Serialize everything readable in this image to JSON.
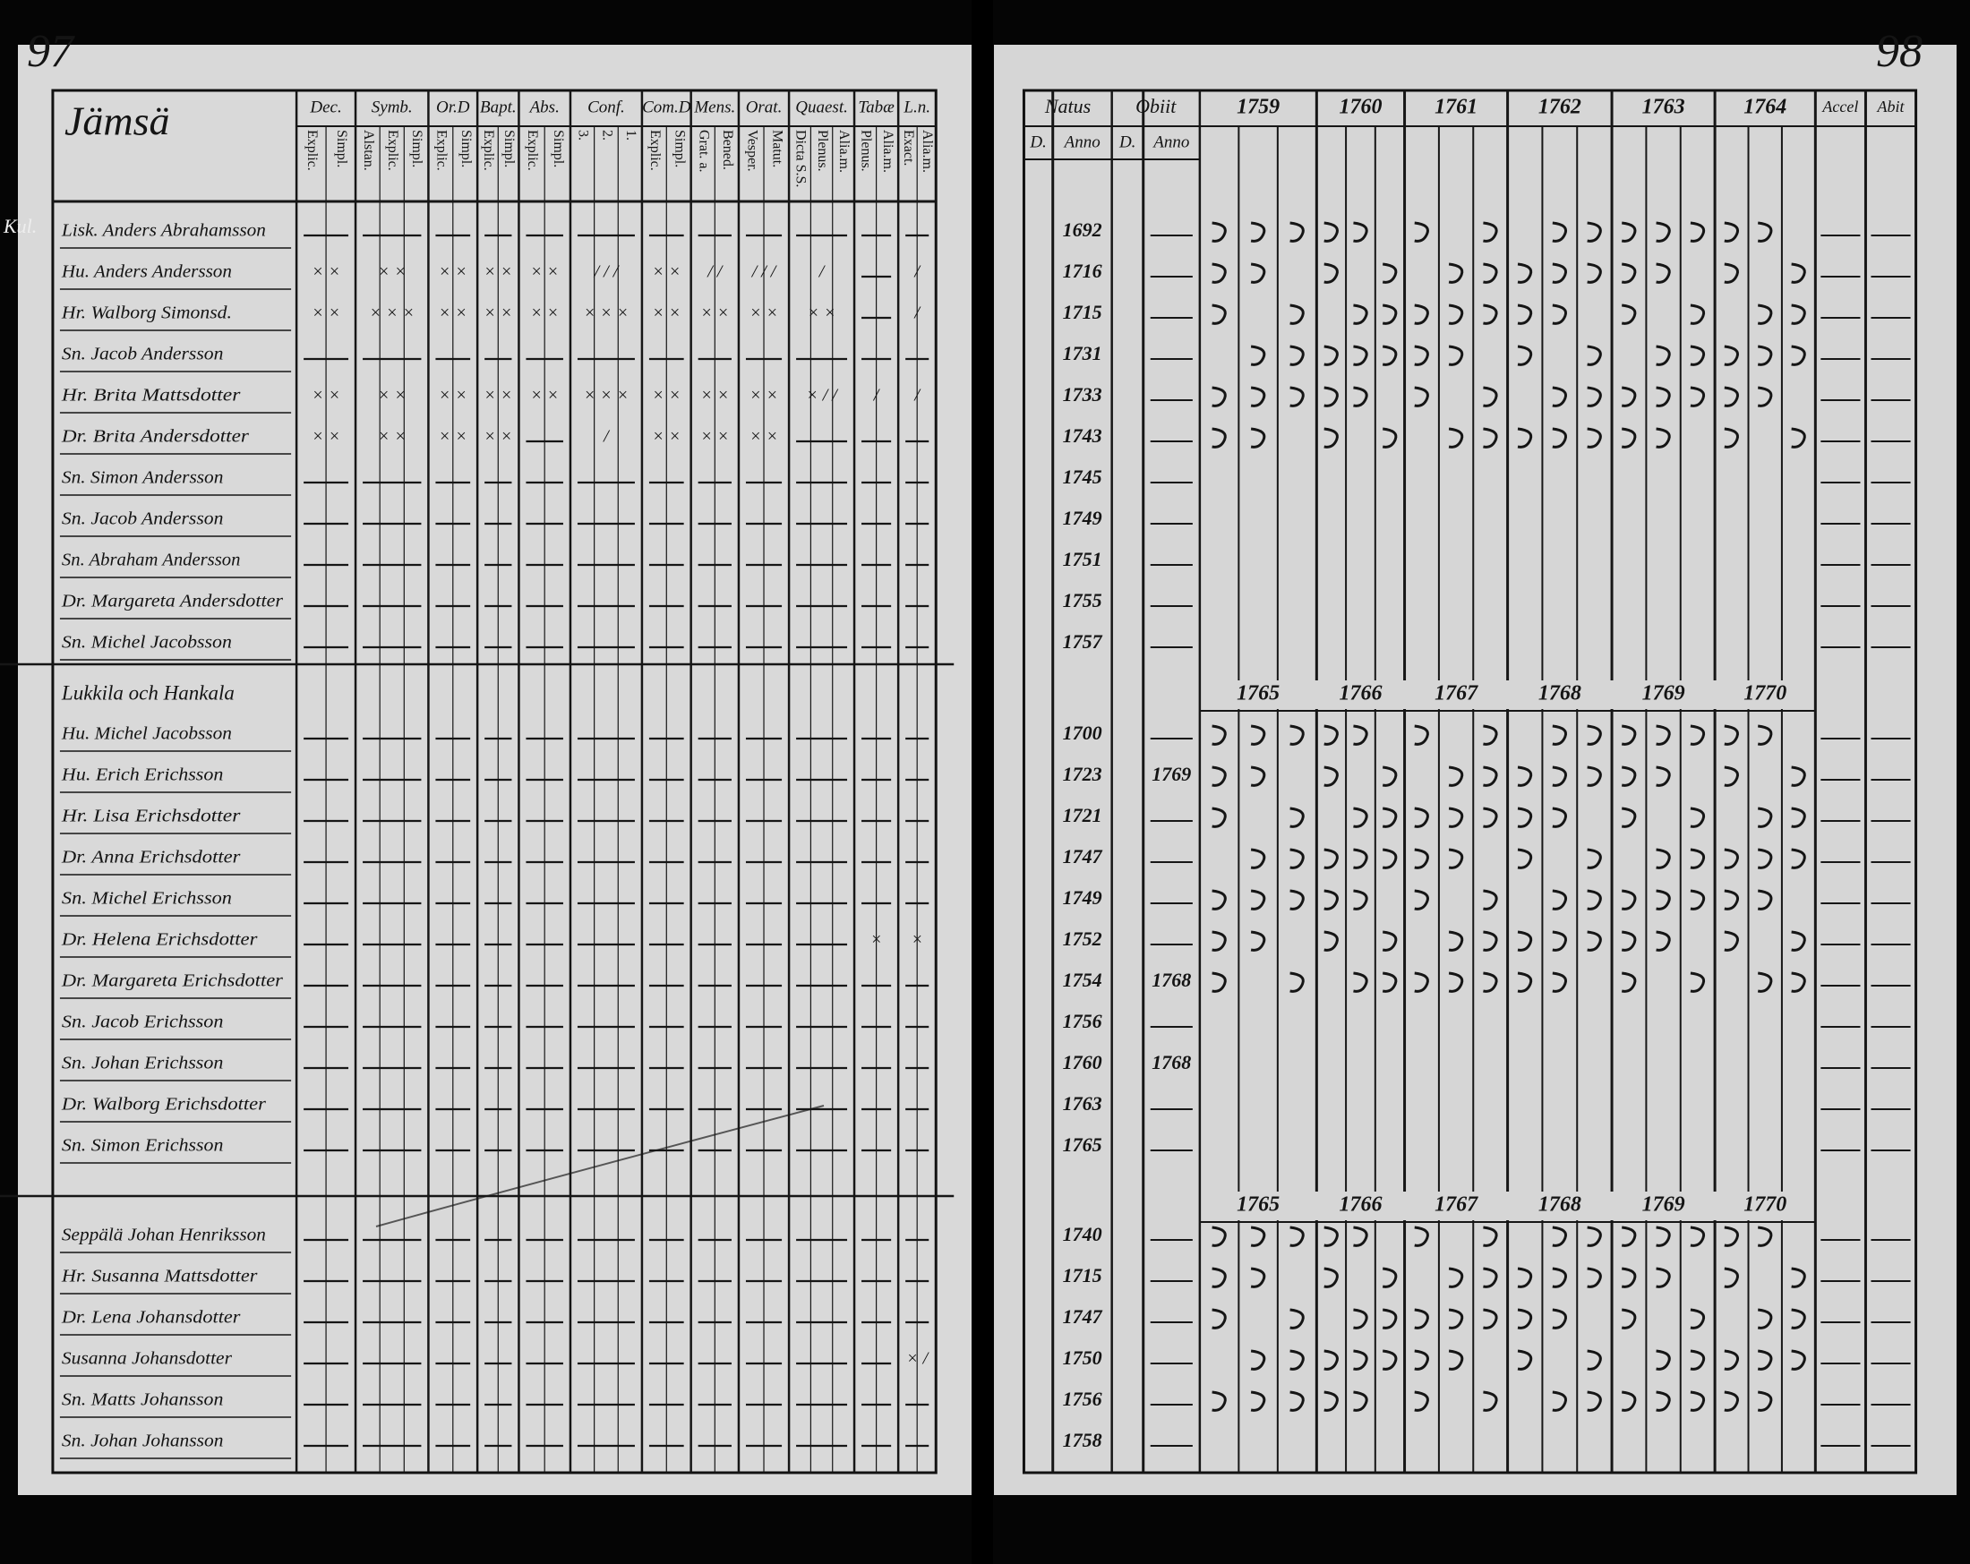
{
  "page_numbers": {
    "left": "97",
    "right": "98"
  },
  "left_page": {
    "title": "Jämsä",
    "margin_note": "Kul.",
    "columns": [
      {
        "label": "Dec.",
        "sub": [
          "Explic.",
          "Simpl."
        ]
      },
      {
        "label": "Symb.",
        "sub": [
          "Alstan.",
          "Explic.",
          "Simpl."
        ]
      },
      {
        "label": "Or.D",
        "sub": [
          "Explic.",
          "Simpl."
        ]
      },
      {
        "label": "Bapt.",
        "sub": [
          "Explic.",
          "Simpl."
        ]
      },
      {
        "label": "Abs.",
        "sub": [
          "Explic.",
          "Simpl."
        ]
      },
      {
        "label": "Conf.",
        "sub": [
          "3.",
          "2.",
          "1."
        ]
      },
      {
        "label": "Com.D",
        "sub": [
          "Explic.",
          "Simpl."
        ]
      },
      {
        "label": "Mens.",
        "sub": [
          "Grat. a.",
          "Bened."
        ]
      },
      {
        "label": "Orat.",
        "sub": [
          "Vesper.",
          "Matut."
        ]
      },
      {
        "label": "Quaest.",
        "sub": [
          "Dicta S.S.",
          "Plenus.",
          "Alia.m."
        ]
      },
      {
        "label": "Tabæ",
        "sub": [
          "Plenus.",
          "Alia.m."
        ]
      },
      {
        "label": "L.n.",
        "sub": [
          "Exact.",
          "Alia.m."
        ]
      }
    ]
  },
  "right_page": {
    "natus": {
      "label": "Natus",
      "sub": [
        "D.",
        "Anno"
      ]
    },
    "obiit": {
      "label": "Obiit",
      "sub": [
        "D.",
        "Anno"
      ]
    },
    "years": [
      "1759",
      "1760",
      "1761",
      "1762",
      "1763",
      "1764"
    ],
    "accel": "Accel",
    "abit": "Abit"
  },
  "groups": [
    {
      "rows": [
        {
          "name": "Lisk. Anders Abrahamsson",
          "born": "1692"
        },
        {
          "name": "Hu. Anders Andersson",
          "born": "1716",
          "marks": [
            "× ×",
            "× ×",
            "× ×",
            "× ×",
            "× ×",
            "/ / /",
            "× ×",
            "/ /",
            "/ / /",
            "/",
            null,
            "/"
          ]
        },
        {
          "name": "Hr. Walborg Simonsd.",
          "born": "1715",
          "marks": [
            "× ×",
            "× × ×",
            "× ×",
            "× ×",
            "× ×",
            "× × ×",
            "× ×",
            "× ×",
            "× ×",
            "× ×",
            null,
            "/"
          ]
        },
        {
          "name": "Sn. Jacob Andersson",
          "born": "1731"
        },
        {
          "name": "Hr. Brita Mattsdotter",
          "born": "1733",
          "marks": [
            "× ×",
            "× ×",
            "× ×",
            "× ×",
            "× ×",
            "× × ×",
            "× ×",
            "× ×",
            "× ×",
            "× / /",
            "/",
            "/"
          ]
        },
        {
          "name": "Dr. Brita Andersdotter",
          "born": "1743",
          "marks": [
            "× ×",
            "× ×",
            "× ×",
            "× ×",
            null,
            "/",
            "× ×",
            "× ×",
            "× ×",
            null,
            null,
            null
          ]
        },
        {
          "name": "Sn. Simon Andersson",
          "born": "1745"
        },
        {
          "name": "Sn. Jacob Andersson",
          "born": "1749"
        },
        {
          "name": "Sn. Abraham Andersson",
          "born": "1751"
        },
        {
          "name": "Dr. Margareta Andersdotter",
          "born": "1755"
        },
        {
          "name": "Sn. Michel Jacobsson",
          "born": "1757"
        }
      ]
    },
    {
      "header": "Lukkila och Hankala",
      "years": [
        "1765",
        "1766",
        "1767",
        "1768",
        "1769",
        "1770"
      ],
      "rows": [
        {
          "name": "Hu. Michel Jacobsson",
          "born": "1700"
        },
        {
          "name": "Hu. Erich Erichsson",
          "born": "1723",
          "died": "1769"
        },
        {
          "name": "Hr. Lisa Erichsdotter",
          "born": "1721"
        },
        {
          "name": "Dr. Anna Erichsdotter",
          "born": "1747"
        },
        {
          "name": "Sn. Michel Erichsson",
          "born": "1749"
        },
        {
          "name": "Dr. Helena Erichsdotter",
          "born": "1752",
          "marks": [
            null,
            null,
            null,
            null,
            null,
            null,
            null,
            null,
            null,
            null,
            "×",
            "×"
          ]
        },
        {
          "name": "Dr. Margareta Erichsdotter",
          "born": "1754",
          "died": "1768"
        },
        {
          "name": "Sn. Jacob Erichsson",
          "born": "1756"
        },
        {
          "name": "Sn. Johan Erichsson",
          "born": "1760",
          "died": "1768"
        },
        {
          "name": "Dr. Walborg Erichsdotter",
          "born": "1763"
        },
        {
          "name": "Sn. Simon Erichsson",
          "born": "1765"
        }
      ]
    },
    {
      "years": [
        "1765",
        "1766",
        "1767",
        "1768",
        "1769",
        "1770"
      ],
      "rows": [
        {
          "name": "Seppälä Johan Henriksson",
          "born": "1740"
        },
        {
          "name": "Hr. Susanna Mattsdotter",
          "born": "1715"
        },
        {
          "name": "Dr. Lena Johansdotter",
          "born": "1747"
        },
        {
          "name": "Susanna Johansdotter",
          "born": "1750",
          "marks": [
            null,
            null,
            null,
            null,
            null,
            null,
            null,
            null,
            null,
            null,
            null,
            "× /"
          ]
        },
        {
          "name": "Sn. Matts Johansson",
          "born": "1756"
        },
        {
          "name": "Sn. Johan Johansson",
          "born": "1758"
        }
      ]
    }
  ]
}
